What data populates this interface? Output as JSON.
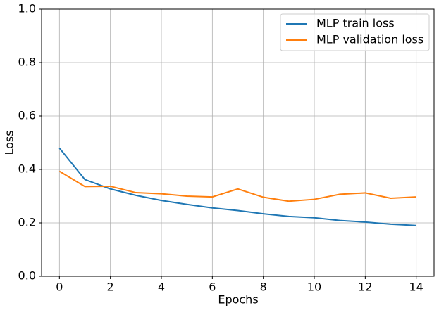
{
  "chart_data": {
    "type": "line",
    "x_label": "Epochs",
    "y_label": "Loss",
    "x": [
      0,
      1,
      2,
      3,
      4,
      5,
      6,
      7,
      8,
      9,
      10,
      11,
      12,
      13,
      14
    ],
    "series": [
      {
        "name": "MLP train loss",
        "color": "#1f77b4",
        "values": [
          0.48,
          0.362,
          0.327,
          0.303,
          0.284,
          0.269,
          0.256,
          0.246,
          0.234,
          0.224,
          0.219,
          0.209,
          0.203,
          0.195,
          0.19
        ]
      },
      {
        "name": "MLP validation loss",
        "color": "#ff7f0e",
        "values": [
          0.393,
          0.336,
          0.337,
          0.313,
          0.309,
          0.3,
          0.297,
          0.327,
          0.296,
          0.281,
          0.288,
          0.307,
          0.312,
          0.292,
          0.297
        ]
      }
    ],
    "xlim": [
      -0.7,
      14.7
    ],
    "ylim": [
      0,
      1
    ],
    "xticks": [
      0,
      2,
      4,
      6,
      8,
      10,
      12,
      14
    ],
    "yticks": [
      {
        "value": 0,
        "label": "0.0"
      },
      0.2,
      0.4,
      0.6,
      0.8,
      {
        "value": 1,
        "label": "1.0"
      }
    ],
    "grid": true,
    "legend": "upper-right"
  }
}
